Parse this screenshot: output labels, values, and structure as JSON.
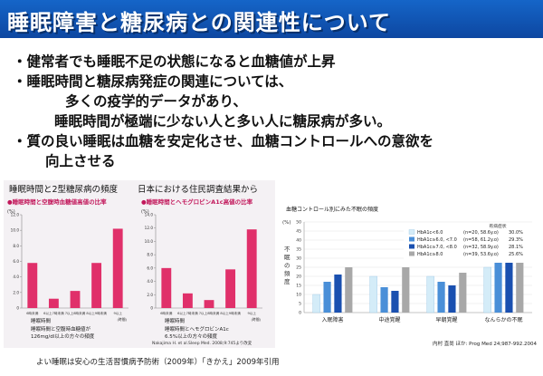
{
  "title": "睡眠障害と糖尿病との関連性について",
  "bullets": {
    "b1": "・健常者でも睡眠不足の状態になると血糖値が上昇",
    "b2": "・睡眠時間と糖尿病発症の関連については、",
    "b2_l2": "多くの疫学的データがあり、",
    "b2_l3": "睡眠時間が極端に少ない人と多い人に糖尿病が多い。",
    "b3": "・質の良い睡眠は血糖を安定化させ、血糖コントロールへの意欲を",
    "b3_l2": "向上させる"
  },
  "left_figure": {
    "heading1": "睡眠時間と2型糖尿病の頻度",
    "heading2": "日本における住民調査結果から",
    "source": "Nakajima H. et al.Sleep Med. 2008;9:745より改変",
    "colors": {
      "bar": "#e0306a",
      "label": "#c2185b"
    }
  },
  "right_figure": {
    "title": "血糖コントロール別にみた不眠の頻度",
    "source": "内村 直尚 ほか: Prog Med 24;987-992.2004",
    "legend_header": "有病症状",
    "colors": [
      "#d4ecf8",
      "#4a8fd8",
      "#1a50b0",
      "#a8a8a8"
    ]
  },
  "footer": "よい睡眠は安心の生活習慣病予防術（2009年）「きかえ」2009年引用",
  "chart_data": [
    {
      "type": "bar",
      "title": "睡眠時間と空腹時血糖値高値の比率",
      "ylabel": "(%)",
      "xlabel": "睡眠時間",
      "categories": [
        "6時未満",
        "6以上7時未満",
        "7以上8時未満",
        "8以上9時未満",
        "9以上"
      ],
      "category_suffix": "(時間)",
      "values": [
        5.8,
        1.2,
        2.2,
        5.8,
        10.2
      ],
      "ylim": [
        0,
        12
      ],
      "yticks": [
        0,
        2.0,
        4.0,
        6.0,
        8.0,
        10.0,
        12.0
      ],
      "caption": [
        "睡眠時間と空腹時血糖値が",
        "126mg/dl以上の方々の頻度"
      ]
    },
    {
      "type": "bar",
      "title": "睡眠時間とヘモグロビンA1c高値の比率",
      "ylabel": "(%)",
      "xlabel": "睡眠時間",
      "categories": [
        "6時未満",
        "6以上7時未満",
        "7以上8時未満",
        "8以上9時未満",
        "9以上"
      ],
      "category_suffix": "(時間)",
      "values": [
        6.0,
        2.2,
        1.2,
        5.8,
        11.8
      ],
      "ylim": [
        0,
        14
      ],
      "yticks": [
        0,
        2.0,
        4.0,
        6.0,
        8.0,
        10.0,
        12.0,
        14.0
      ],
      "caption": [
        "睡眠時間とヘモグロビンA1c",
        "6.5%以上の方々の頻度"
      ]
    },
    {
      "type": "bar",
      "title": "血糖コントロール別にみた不眠の頻度",
      "ylabel": "不眠の頻度",
      "yunit": "(%)",
      "categories": [
        "入眠障害",
        "中途覚醒",
        "早朝覚醒",
        "なんらかの不眠"
      ],
      "ylim": [
        0,
        50
      ],
      "yticks": [
        0,
        5,
        10,
        15,
        20,
        25,
        30,
        35,
        40,
        45,
        50
      ],
      "series": [
        {
          "name": "HbA1c<6.0",
          "n": "(n=20, 58.6y.o)",
          "pct": "30.0%",
          "values": [
            10,
            20,
            20,
            25
          ]
        },
        {
          "name": "HbA1c≥6.0, <7.0",
          "n": "(n=58, 61.2y.o)",
          "pct": "29.3%",
          "values": [
            17,
            14,
            17,
            32
          ]
        },
        {
          "name": "HbA1c≥7.0, <8.0",
          "n": "(n=32, 58.9y.o)",
          "pct": "28.1%",
          "values": [
            21,
            12,
            15,
            40
          ]
        },
        {
          "name": "HbA1c≥8.0",
          "n": "(n=39, 53.6y.o)",
          "pct": "25.6%",
          "values": [
            25,
            25,
            22,
            43
          ]
        }
      ]
    }
  ]
}
